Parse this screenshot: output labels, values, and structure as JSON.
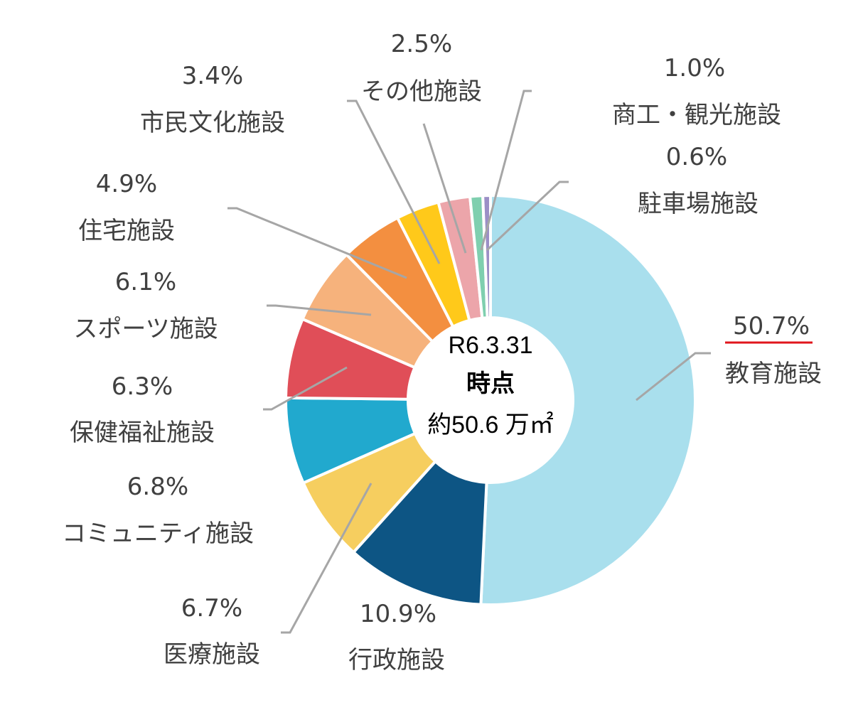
{
  "chart_data": {
    "type": "pie",
    "donut": true,
    "center_label": {
      "line1": "R6.3.31",
      "line2": "時点",
      "line3": "約50.6 万㎡"
    },
    "slices": [
      {
        "name": "教育施設",
        "value": 50.7,
        "label": "50.7%",
        "color": "#A9DFED"
      },
      {
        "name": "行政施設",
        "value": 10.9,
        "label": "10.9%",
        "color": "#0D5584"
      },
      {
        "name": "医療施設",
        "value": 6.7,
        "label": "6.7%",
        "color": "#F6CE5F"
      },
      {
        "name": "コミュニティ施設",
        "value": 6.8,
        "label": "6.8%",
        "color": "#21A9CE"
      },
      {
        "name": "保健福祉施設",
        "value": 6.3,
        "label": "6.3%",
        "color": "#E04E58"
      },
      {
        "name": "スポーツ施設",
        "value": 6.1,
        "label": "6.1%",
        "color": "#F6B27C"
      },
      {
        "name": "住宅施設",
        "value": 4.9,
        "label": "4.9%",
        "color": "#F38F40"
      },
      {
        "name": "市民文化施設",
        "value": 3.4,
        "label": "3.4%",
        "color": "#FFC91A"
      },
      {
        "name": "その他施設",
        "value": 2.5,
        "label": "2.5%",
        "color": "#ECA5AA"
      },
      {
        "name": "商工・観光施設",
        "value": 1.0,
        "label": "1.0%",
        "color": "#7FCFAF"
      },
      {
        "name": "駐車場施設",
        "value": 0.6,
        "label": "0.6%",
        "color": "#9B8FC6"
      }
    ],
    "highlight": {
      "slice": "教育施設",
      "underline_color": "#E0161C"
    },
    "leader_line_color": "#A6A6A6"
  }
}
